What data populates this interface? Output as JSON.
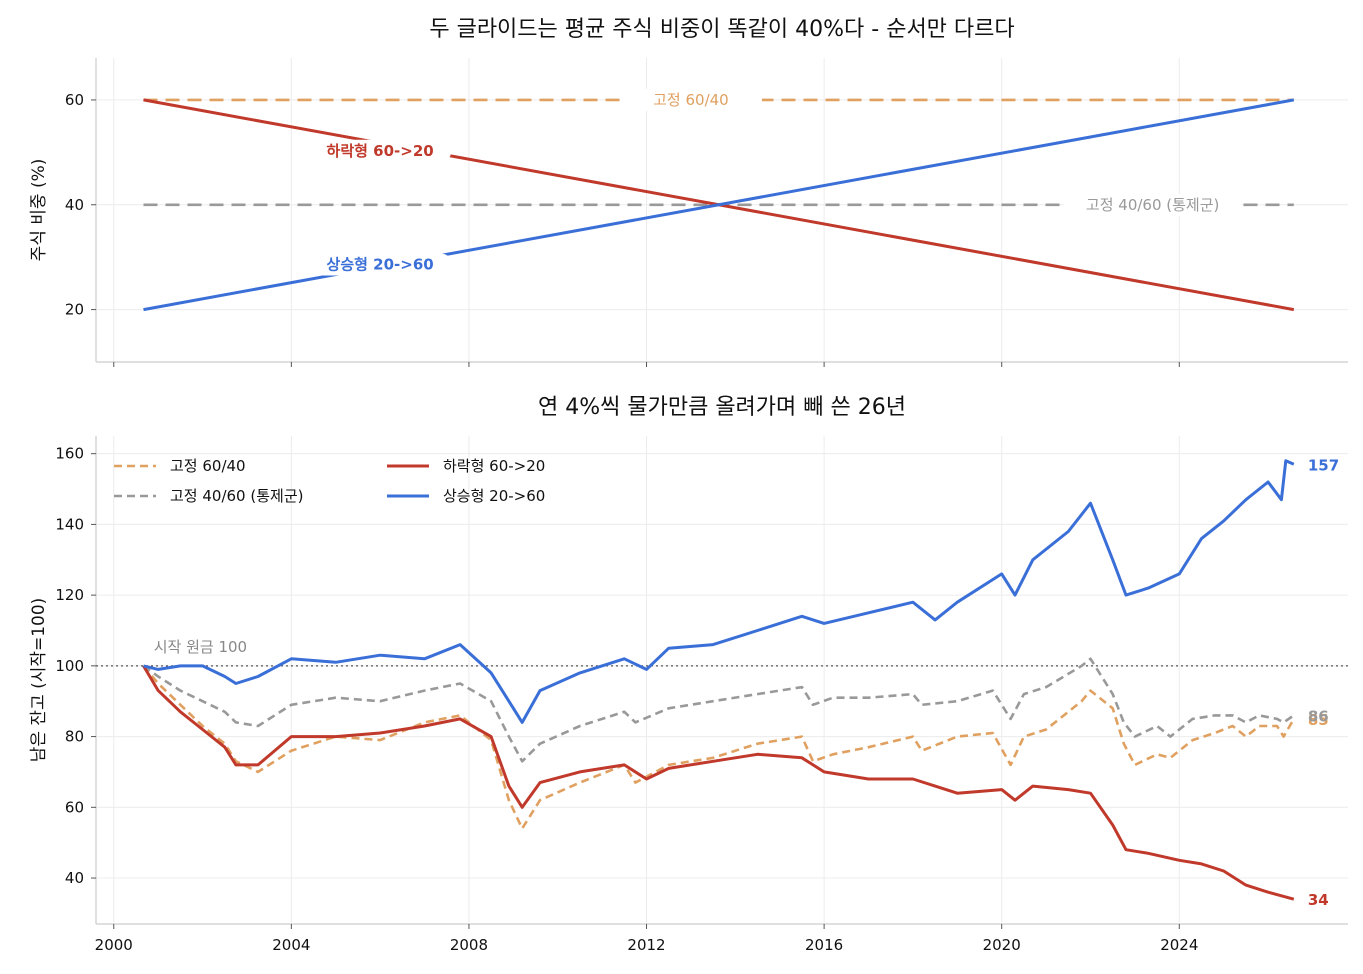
{
  "chart_data": [
    {
      "type": "line",
      "title": "두 글라이드는 평균 주식 비중이 똑같이 40%다 - 순서만 다르다",
      "ylabel": "주식 비중 (%)",
      "xlim": [
        1999.6,
        2027.8
      ],
      "ylim": [
        10,
        68
      ],
      "yticks": [
        20,
        40,
        60
      ],
      "xticks": [
        2000,
        2004,
        2008,
        2012,
        2016,
        2020,
        2024
      ],
      "xtick_labels_shown": false,
      "grid": true,
      "series": [
        {
          "key": "fixed6040",
          "name": "고정 60/40",
          "label": "고정 60/40",
          "color": "#e0a060",
          "dash": true,
          "x": [
            2000.67,
            2026.58
          ],
          "y": [
            60,
            60
          ]
        },
        {
          "key": "fixed4060",
          "name": "고정 40/60 (통제군)",
          "label": "고정 40/60 (통제군)",
          "color": "#999999",
          "dash": true,
          "x": [
            2000.67,
            2026.58
          ],
          "y": [
            40,
            40
          ]
        },
        {
          "key": "falling",
          "name": "하락형 60->20",
          "label": "하락형 60->20",
          "color": "#c0392b",
          "dash": false,
          "x": [
            2000.67,
            2026.58
          ],
          "y": [
            60,
            20
          ]
        },
        {
          "key": "rising",
          "name": "상승형 20->60",
          "label": "상승형 20->60",
          "color": "#3a6fd8",
          "dash": false,
          "x": [
            2000.67,
            2026.58
          ],
          "y": [
            20,
            60
          ]
        }
      ]
    },
    {
      "type": "line",
      "title": "연 4%씩 물가만큼 올려가며 빼 쓴 26년",
      "ylabel": "남은 잔고 (시작=100)",
      "xlim": [
        1999.6,
        2027.8
      ],
      "ylim": [
        27,
        165
      ],
      "yticks": [
        40,
        60,
        80,
        100,
        120,
        140,
        160
      ],
      "xticks": [
        2000,
        2004,
        2008,
        2012,
        2016,
        2020,
        2024
      ],
      "grid": true,
      "legend_position": "top-left",
      "reference_line": {
        "y": 100,
        "label": "시작 원금 100"
      },
      "series": [
        {
          "key": "fixed6040",
          "name": "고정 60/40",
          "color": "#e0a060",
          "dash": true,
          "end_label": "85",
          "x": [
            2000.67,
            2001.0,
            2001.5,
            2002.0,
            2002.5,
            2002.75,
            2003.25,
            2004.0,
            2005.0,
            2006.0,
            2007.0,
            2007.8,
            2008.5,
            2008.9,
            2009.2,
            2009.6,
            2010.5,
            2011.5,
            2011.75,
            2012.5,
            2013.5,
            2014.5,
            2015.5,
            2015.75,
            2016.2,
            2017.0,
            2018.0,
            2018.2,
            2019.0,
            2019.8,
            2020.2,
            2020.5,
            2021.0,
            2021.8,
            2022.0,
            2022.5,
            2022.75,
            2023.0,
            2023.5,
            2023.8,
            2024.3,
            2024.8,
            2025.2,
            2025.5,
            2025.8,
            2026.2,
            2026.35,
            2026.58
          ],
          "y": [
            100,
            95,
            89,
            83,
            78,
            73,
            70,
            76,
            80,
            79,
            84,
            86,
            79,
            62,
            54,
            62,
            67,
            72,
            67,
            72,
            74,
            78,
            80,
            73,
            75,
            77,
            80,
            76,
            80,
            81,
            72,
            80,
            82,
            90,
            93,
            88,
            78,
            72,
            75,
            74,
            79,
            81,
            83,
            80,
            83,
            83,
            80,
            85
          ]
        },
        {
          "key": "fixed4060",
          "name": "고정 40/60 (통제군)",
          "label": "고정 40/60 (통제군)",
          "color": "#999999",
          "dash": true,
          "end_label": "86",
          "x": [
            2000.67,
            2001.0,
            2001.5,
            2002.0,
            2002.5,
            2002.75,
            2003.25,
            2004.0,
            2005.0,
            2006.0,
            2007.0,
            2007.8,
            2008.5,
            2008.9,
            2009.2,
            2009.6,
            2010.5,
            2011.5,
            2011.75,
            2012.5,
            2013.5,
            2014.5,
            2015.5,
            2015.75,
            2016.2,
            2017.0,
            2018.0,
            2018.2,
            2019.0,
            2019.8,
            2020.2,
            2020.5,
            2021.0,
            2021.8,
            2022.0,
            2022.5,
            2022.75,
            2023.0,
            2023.5,
            2023.8,
            2024.3,
            2024.8,
            2025.2,
            2025.5,
            2025.8,
            2026.2,
            2026.35,
            2026.58
          ],
          "y": [
            100,
            97,
            93,
            90,
            87,
            84,
            83,
            89,
            91,
            90,
            93,
            95,
            90,
            80,
            73,
            78,
            83,
            87,
            84,
            88,
            90,
            92,
            94,
            89,
            91,
            91,
            92,
            89,
            90,
            93,
            85,
            92,
            94,
            100,
            102,
            92,
            84,
            80,
            83,
            80,
            85,
            86,
            86,
            84,
            86,
            85,
            84,
            86
          ]
        },
        {
          "key": "falling",
          "name": "하락형 60->20",
          "color": "#c0392b",
          "dash": false,
          "end_label": "34",
          "x": [
            2000.67,
            2001.0,
            2001.5,
            2002.0,
            2002.5,
            2002.75,
            2003.25,
            2004.0,
            2005.0,
            2006.0,
            2007.0,
            2007.8,
            2008.5,
            2008.9,
            2009.2,
            2009.6,
            2010.5,
            2011.5,
            2012.0,
            2012.5,
            2013.5,
            2014.5,
            2015.5,
            2016.0,
            2017.0,
            2018.0,
            2018.5,
            2019.0,
            2020.0,
            2020.3,
            2020.7,
            2021.5,
            2022.0,
            2022.5,
            2022.8,
            2023.3,
            2024.0,
            2024.5,
            2025.0,
            2025.5,
            2026.0,
            2026.58
          ],
          "y": [
            100,
            93,
            87,
            82,
            77,
            72,
            72,
            80,
            80,
            81,
            83,
            85,
            80,
            66,
            60,
            67,
            70,
            72,
            68,
            71,
            73,
            75,
            74,
            70,
            68,
            68,
            66,
            64,
            65,
            62,
            66,
            65,
            64,
            55,
            48,
            47,
            45,
            44,
            42,
            38,
            36,
            34
          ]
        },
        {
          "key": "rising",
          "name": "상승형 20->60",
          "color": "#3a6fd8",
          "dash": false,
          "end_label": "157",
          "x": [
            2000.67,
            2001.0,
            2001.5,
            2002.0,
            2002.5,
            2002.75,
            2003.25,
            2004.0,
            2005.0,
            2006.0,
            2007.0,
            2007.8,
            2008.5,
            2008.9,
            2009.2,
            2009.6,
            2010.5,
            2011.5,
            2012.0,
            2012.5,
            2013.5,
            2014.5,
            2015.5,
            2016.0,
            2017.0,
            2018.0,
            2018.5,
            2019.0,
            2020.0,
            2020.3,
            2020.7,
            2021.5,
            2022.0,
            2022.5,
            2022.8,
            2023.3,
            2024.0,
            2024.5,
            2025.0,
            2025.5,
            2026.0,
            2026.3,
            2026.4,
            2026.58
          ],
          "y": [
            100,
            99,
            100,
            100,
            97,
            95,
            97,
            102,
            101,
            103,
            102,
            106,
            98,
            90,
            84,
            93,
            98,
            102,
            99,
            105,
            106,
            110,
            114,
            112,
            115,
            118,
            113,
            118,
            126,
            120,
            130,
            138,
            146,
            130,
            120,
            122,
            126,
            136,
            141,
            147,
            152,
            147,
            158,
            157
          ]
        }
      ]
    }
  ]
}
